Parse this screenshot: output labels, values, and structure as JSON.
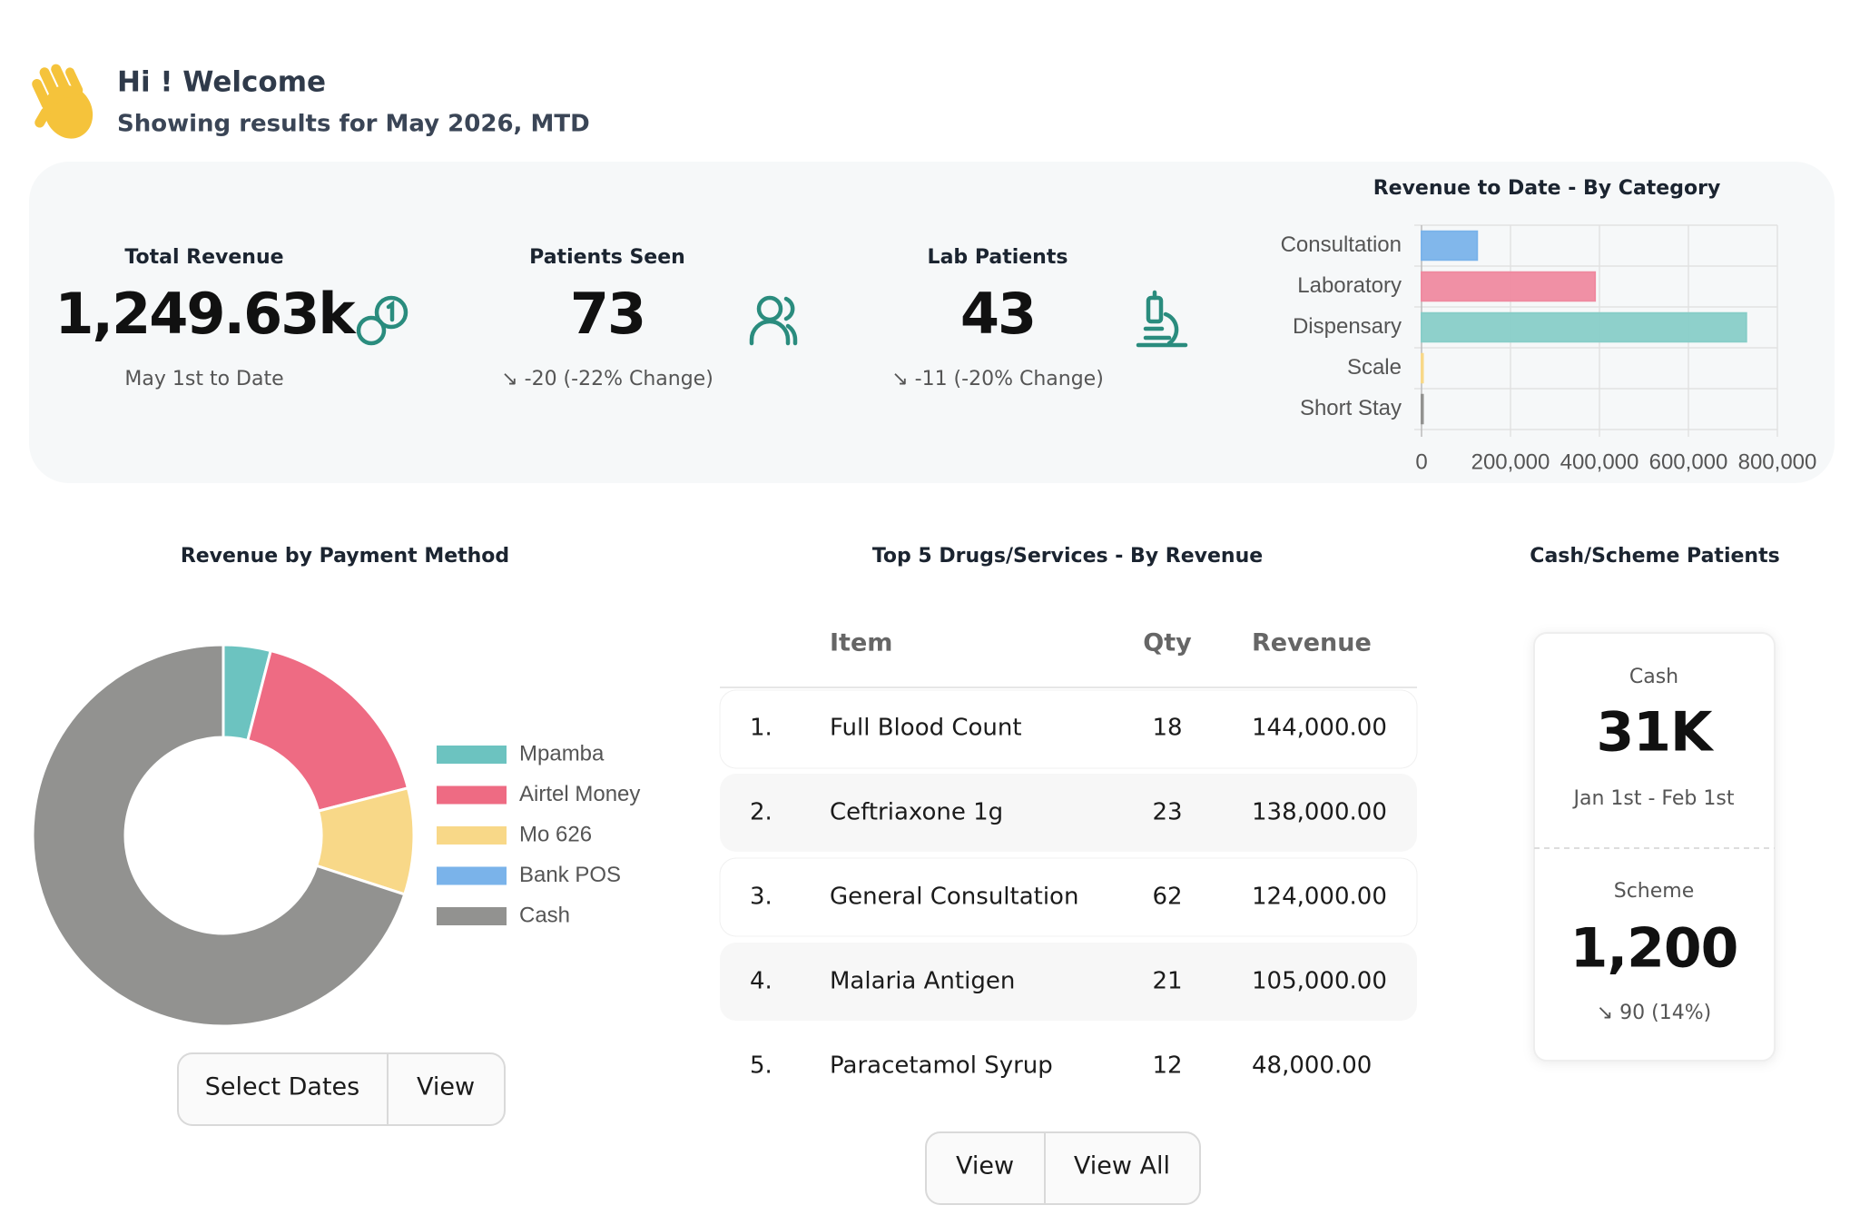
{
  "header": {
    "title": "Hi ! Welcome",
    "subtitle": "Showing results for May 2026, MTD"
  },
  "kpis": [
    {
      "label": "Total Revenue",
      "value": "1,249.63k",
      "note": "May 1st to Date"
    },
    {
      "label": "Patients Seen",
      "value": "73",
      "note": "↘ -20 (-22% Change)"
    },
    {
      "label": "Lab Patients",
      "value": "43",
      "note": "↘ -11 (-20% Change)"
    }
  ],
  "chart_data": [
    {
      "type": "bar",
      "orientation": "horizontal",
      "title": "Revenue to Date - By Category",
      "categories": [
        "Consultation",
        "Laboratory",
        "Dispensary",
        "Scale",
        "Short Stay"
      ],
      "values": [
        125000,
        390000,
        730000,
        0,
        3000
      ],
      "colors": [
        "#7ab3ea",
        "#ef8aa0",
        "#88cdc8",
        "#f8d888",
        "#929290"
      ],
      "xlim": [
        0,
        800000
      ],
      "xticks": [
        0,
        {
          "value": 200000,
          "label": "200,000"
        },
        {
          "value": 400000,
          "label": "400,000"
        },
        {
          "value": 600000,
          "label": "600,000"
        },
        {
          "value": 800000,
          "label": "800,000"
        }
      ],
      "grid": true
    },
    {
      "type": "donut",
      "title": "Revenue by Payment Method",
      "categories": [
        "Mpamba",
        "Airtel Money",
        "Mo 626",
        "Bank POS",
        "Cash"
      ],
      "values": [
        4,
        17,
        9,
        0,
        70
      ],
      "colors": [
        "#6cc3c0",
        "#ee6b83",
        "#f8d888",
        "#7ab3ea",
        "#929290"
      ],
      "legend": "right"
    }
  ],
  "payment_buttons": [
    "Select Dates",
    "View"
  ],
  "table": {
    "title": "Top 5 Drugs/Services - By Revenue",
    "columns": [
      "Item",
      "Qty",
      "Revenue"
    ],
    "rows": [
      [
        "1.",
        "Full Blood Count",
        "18",
        "144,000.00"
      ],
      [
        "2.",
        "Ceftriaxone 1g",
        "23",
        "138,000.00"
      ],
      [
        "3.",
        "General Consultation",
        "62",
        "124,000.00"
      ],
      [
        "4.",
        "Malaria Antigen",
        "21",
        "105,000.00"
      ],
      [
        "5.",
        "Paracetamol Syrup",
        "12",
        "48,000.00"
      ]
    ],
    "buttons": [
      "View",
      "View All"
    ]
  },
  "cash_scheme": {
    "title": "Cash/Scheme Patients",
    "items": [
      {
        "label": "Cash",
        "value": "31K",
        "note": "Jan 1st - Feb 1st"
      },
      {
        "label": "Scheme",
        "value": "1,200",
        "note": "↘ 90 (14%)"
      }
    ]
  }
}
